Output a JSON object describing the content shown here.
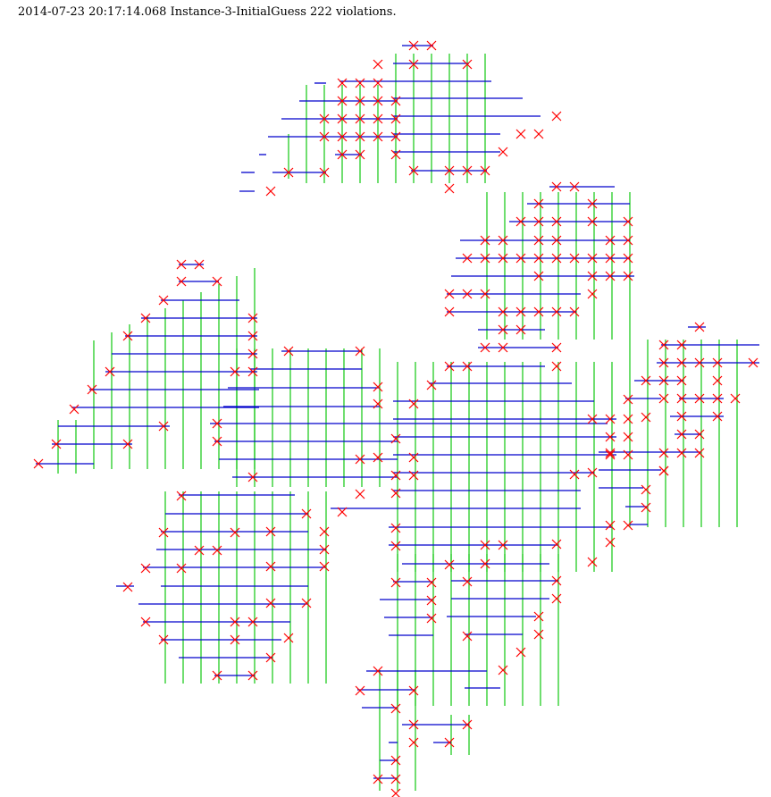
{
  "header": {
    "timestamp": "2014-07-23 20:17:14.068",
    "instance": "Instance-3-InitialGuess",
    "violation_count": "222",
    "violations_word": "violations."
  },
  "colors": {
    "horizontal": "#0000cc",
    "vertical": "#22cc22",
    "violation": "#ff0000"
  },
  "icons": {
    "violation_marker": "x-mark-icon"
  }
}
